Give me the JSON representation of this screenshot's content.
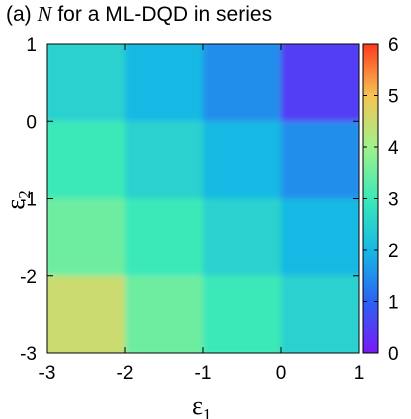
{
  "chart_data": {
    "type": "heatmap",
    "title": {
      "prefix": "(a) ",
      "variable": "N",
      "suffix": " for a ML-DQD in series"
    },
    "xlabel": {
      "symbol": "ε",
      "subscript": "1"
    },
    "ylabel": {
      "symbol": "ε",
      "subscript": "2"
    },
    "xlim": [
      -3,
      1
    ],
    "ylim": [
      -3,
      1
    ],
    "xticks": [
      "-3",
      "-2",
      "-1",
      "0",
      "1"
    ],
    "yticks": [
      "-3",
      "-2",
      "-1",
      "0",
      "1"
    ],
    "x_centers": [
      -2.5,
      -1.5,
      -0.5,
      0.5
    ],
    "y_centers": [
      -2.5,
      -1.5,
      -0.5,
      0.5
    ],
    "values": [
      [
        4.5,
        3.5,
        3.0,
        2.5
      ],
      [
        3.5,
        3.0,
        2.5,
        2.0
      ],
      [
        3.0,
        2.5,
        2.0,
        1.5
      ],
      [
        2.5,
        2.0,
        1.5,
        0.5
      ]
    ],
    "colorbar": {
      "min": 0,
      "max": 6,
      "ticks": [
        "0",
        "1",
        "2",
        "3",
        "4",
        "5",
        "6"
      ]
    },
    "colormap_stops": [
      "#7a18f5",
      "#2b63f4",
      "#17b9e3",
      "#3be9b8",
      "#a0f18a",
      "#f5c453",
      "#ff3a1e"
    ],
    "grid": false
  }
}
